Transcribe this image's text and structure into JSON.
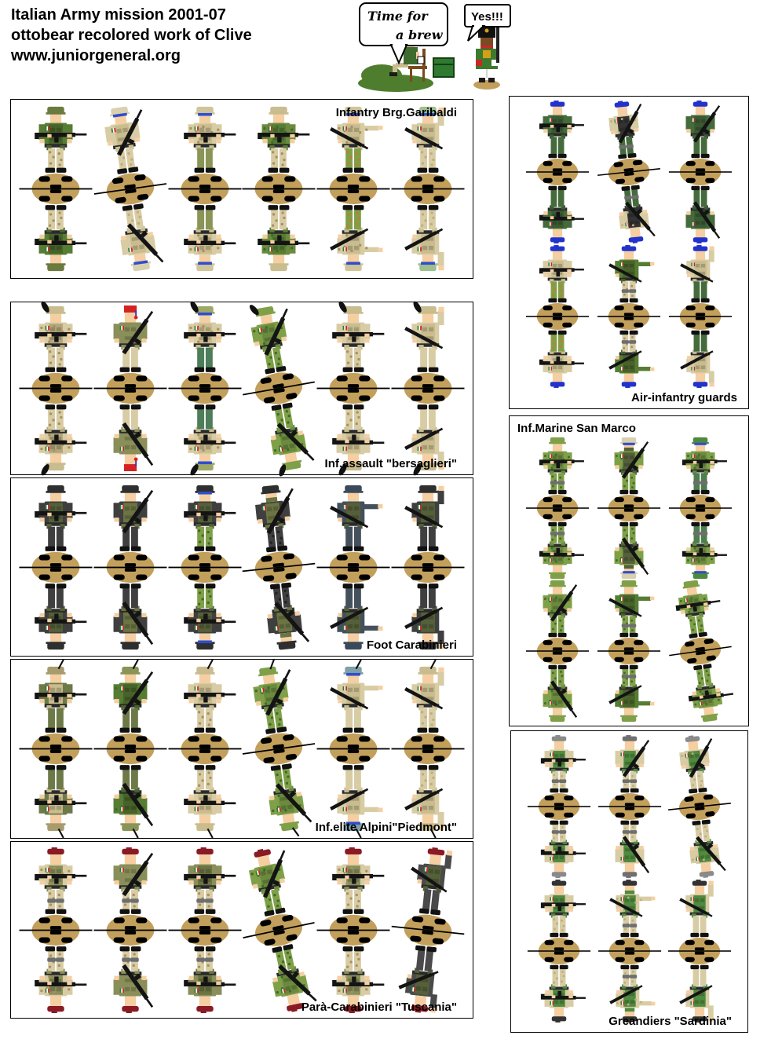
{
  "header": {
    "line1": "Italian Army mission 2001-07",
    "line2": "ottobear recolored work of Clive",
    "line3": "www.juniorgeneral.org"
  },
  "cartoon": {
    "bubble_left_line1": "Time for",
    "bubble_left_line2": "a brew",
    "bubble_right": "Yes!!!"
  },
  "palette": {
    "base_oval": "#C2A05C",
    "skin": "#F5CFA2",
    "rifle": "#141414",
    "flag_green": "#2E7D32",
    "flag_red": "#C62828",
    "goggle_blue": "#2E4ECC"
  },
  "units": [
    {
      "id": "garibaldi",
      "label": "Infantry Brg.Garibaldi",
      "rows": [
        [
          {
            "h": "helmet",
            "hc": "#6B7A3E",
            "coat": "#567D33",
            "vest": "#48632A",
            "pants": "#D8CCA4",
            "cs": "#A8905E",
            "pose": "level"
          },
          {
            "h": "helmet",
            "hc": "#D9D0B0",
            "gog": 1,
            "coat": "#D8CCA4",
            "vest": "#C9BC8E",
            "pants": "#D8CCA4",
            "cs": "#BFAE7E",
            "pose": "up",
            "tilt": -8
          },
          {
            "h": "helmet",
            "hc": "#D0C49A",
            "gog": 1,
            "coat": "#D8CCA4",
            "cc": "#A8905E",
            "vest": "#C9BC8E",
            "pants": "#8A9456",
            "pose": "level"
          },
          {
            "h": "helmet",
            "hc": "#C9BC8E",
            "coat": "#6B8A3E",
            "cc": "#3F6B2A",
            "vest": "#567D33",
            "pants": "#D8CCA4",
            "cs": "#A8905E",
            "pose": "level"
          },
          {
            "h": "helmet",
            "hc": "#D0C49A",
            "gog": 1,
            "coat": "#D8CCA4",
            "cc": "#A8905E",
            "vest": "#C9BC8E",
            "pants": "#7FA048",
            "cs": "#C87830",
            "pose": "point"
          },
          {
            "h": "helmet",
            "hc": "#9FBF8F",
            "gog": 1,
            "coat": "#D8CCA4",
            "vest": "#C9BC8E",
            "pants": "#D8CCA4",
            "cs": "#BFAE7E",
            "pose": "wave"
          }
        ]
      ]
    },
    {
      "id": "bersaglieri",
      "label": "Inf.assault \"bersaglieri\"",
      "rows": [
        [
          {
            "h": "plume",
            "hc": "#C9BC8E",
            "coat": "#D8CCA4",
            "cc": "#A8905E",
            "vest": "#B3A67A",
            "pants": "#D8CCA4",
            "cs": "#A8905E",
            "pose": "level"
          },
          {
            "h": "fez",
            "hc": "#D42222",
            "coat": "#8A8F5A",
            "vest": "#8A8F5A",
            "pants": "#D8CCA4",
            "pose": "up"
          },
          {
            "h": "plume",
            "hc": "#9FA868",
            "gog": 1,
            "coat": "#D8CCA4",
            "cc": "#A8905E",
            "vest": "#C9BC8E",
            "pants": "#4E7D5A",
            "pose": "level"
          },
          {
            "h": "plume",
            "hc": "#7FA048",
            "coat": "#7FA048",
            "cc": "#3F6B2A",
            "vest": "#6B8A3E",
            "pants": "#7FA048",
            "cs": "#3F6B2A",
            "pose": "up",
            "tilt": -10
          },
          {
            "h": "plume",
            "hc": "#C9BC8E",
            "coat": "#D8CCA4",
            "vest": "#C9BC8E",
            "pants": "#D8CCA4",
            "cs": "#A8905E",
            "pose": "level"
          },
          {
            "h": "plume",
            "hc": "#C9BC8E",
            "coat": "#D8CCA4",
            "vest": "#C9BC8E",
            "pants": "#D8CCA4",
            "pose": "wave"
          }
        ]
      ]
    },
    {
      "id": "carabinieri",
      "label": "Foot Carabinieri",
      "rows": [
        [
          {
            "h": "helmet",
            "hc": "#2F2F2F",
            "coat": "#3F3F3F",
            "vest": "#55603A",
            "pants": "#3F3F3F",
            "pose": "level"
          },
          {
            "h": "helmet",
            "hc": "#2F2F2F",
            "coat": "#3F3F3F",
            "vest": "#6B7442",
            "pants": "#3F3F3F",
            "pose": "up"
          },
          {
            "h": "helmet",
            "hc": "#2F2F2F",
            "gog": 1,
            "coat": "#3F3F3F",
            "vest": "#55603A",
            "pants": "#7FA048",
            "cs": "#3F6B2A",
            "pose": "level"
          },
          {
            "h": "helmet",
            "hc": "#2F2F2F",
            "mask": 1,
            "coat": "#3F3F3F",
            "vest": "#6B7442",
            "pants": "#3F3F3F",
            "cs": "#222222",
            "pose": "up",
            "tilt": -6
          },
          {
            "h": "helmet",
            "hc": "#3A4A5A",
            "coat": "#44505C",
            "vest": "#55603A",
            "pants": "#44505C",
            "pose": "point"
          },
          {
            "h": "helmet",
            "hc": "#2F2F2F",
            "coat": "#3F3F3F",
            "vest": "#55603A",
            "pants": "#3F3F3F",
            "pose": "wave"
          }
        ]
      ]
    },
    {
      "id": "alpini",
      "label": "Inf.elite Alpini\"Piedmont\"",
      "rows": [
        [
          {
            "h": "feather",
            "hc": "#A89B6E",
            "coat": "#6D7A48",
            "vest": "#C9BC8E",
            "pants": "#6D7A48",
            "pose": "level"
          },
          {
            "h": "feather",
            "hc": "#8A9456",
            "coat": "#567D33",
            "cc": "#3F6B2A",
            "vest": "#48632A",
            "pants": "#6D7A48",
            "pose": "up"
          },
          {
            "h": "feather",
            "hc": "#C9BC8E",
            "coat": "#D8CCA4",
            "vest": "#C9BC8E",
            "pants": "#D8CCA4",
            "cs": "#A8905E",
            "pose": "level"
          },
          {
            "h": "feather",
            "hc": "#7FA048",
            "coat": "#7FA048",
            "cc": "#3F6B2A",
            "vest": "#6B8A3E",
            "pants": "#7FA048",
            "cs": "#3F6B2A",
            "pose": "up",
            "tilt": -8
          },
          {
            "h": "feather",
            "hc": "#7FA0A8",
            "gog": 1,
            "coat": "#D8CCA4",
            "vest": "#C9BC8E",
            "pants": "#D8CCA4",
            "pose": "point"
          },
          {
            "h": "feather",
            "hc": "#C9BC8E",
            "coat": "#D8CCA4",
            "vest": "#C9BC8E",
            "pants": "#D8CCA4",
            "cs": "#BFAE7E",
            "pose": "wave"
          }
        ]
      ]
    },
    {
      "id": "tuscania",
      "label": "Parà-Carabinieri \"Tuscania\"",
      "rows": [
        [
          {
            "h": "beret",
            "hc": "#8A1A24",
            "coat": "#D8CCA4",
            "cc": "#A8905E",
            "vest": "#8A8F5A",
            "pants": "#D8CCA4",
            "cs": "#A8905E",
            "pose": "level",
            "kp": 1
          },
          {
            "h": "beret",
            "hc": "#8A1A24",
            "coat": "#8A8F5A",
            "vest": "#8A8F5A",
            "pants": "#D8CCA4",
            "cs": "#A8905E",
            "pose": "up",
            "kp": 1
          },
          {
            "h": "beret",
            "hc": "#8A1A24",
            "coat": "#8A8F5A",
            "vest": "#6B7442",
            "pants": "#D8CCA4",
            "cs": "#A8905E",
            "pose": "level",
            "kp": 1
          },
          {
            "h": "beret",
            "hc": "#8A1A24",
            "coat": "#7FA048",
            "cc": "#3F6B2A",
            "vest": "#6B8A3E",
            "pants": "#7FA048",
            "cs": "#3F6B2A",
            "pose": "up",
            "tilt": -12
          },
          {
            "h": "beret",
            "hc": "#8A1A24",
            "coat": "#D8CCA4",
            "cc": "#A8905E",
            "vest": "#8A8F5A",
            "pants": "#D8CCA4",
            "cs": "#A8905E",
            "pose": "level"
          },
          {
            "h": "beret",
            "hc": "#8A1A24",
            "coat": "#4A4A4A",
            "vest": "#55603A",
            "pants": "#4A4A4A",
            "pose": "wave",
            "tilt": 6
          }
        ]
      ]
    },
    {
      "id": "airguards",
      "label": "Air-infantry guards",
      "rows": [
        [
          {
            "h": "beret",
            "hc": "#2233CC",
            "coat": "#456B3C",
            "vest": "#3A5A32",
            "pants": "#456B3C",
            "pose": "level"
          },
          {
            "h": "beret",
            "hc": "#2233CC",
            "coat": "#D8CCA4",
            "cc": "#BFAE7E",
            "vest": "#333333",
            "pants": "#456B3C",
            "pose": "up",
            "tilt": -6,
            "kp": 1
          },
          {
            "h": "beret",
            "hc": "#2233CC",
            "coat": "#456B3C",
            "vest": "#3A5A32",
            "pants": "#456B3C",
            "pose": "up"
          }
        ],
        [
          {
            "h": "beret",
            "hc": "#2233CC",
            "coat": "#D8CCA4",
            "vest": "#C9BC8E",
            "pants": "#7FA048",
            "cs": "#C87830",
            "pose": "level"
          },
          {
            "h": "beret",
            "hc": "#2233CC",
            "coat": "#567D33",
            "vest": "#48632A",
            "pants": "#D8CCA4",
            "cs": "#A8905E",
            "pose": "point",
            "kp": 1
          },
          {
            "h": "beret",
            "hc": "#2233CC",
            "coat": "#D8CCA4",
            "vest": "#C9BC8E",
            "pants": "#456B3C",
            "pose": "wave"
          }
        ]
      ]
    },
    {
      "id": "sanmarco",
      "label": "Inf.Marine San Marco",
      "rows": [
        [
          {
            "h": "helmet",
            "hc": "#7FA048",
            "coat": "#7FA048",
            "cc": "#3F6B2A",
            "vest": "#6B8A3E",
            "pants": "#7FA048",
            "cs": "#3F6B2A",
            "pose": "level",
            "kp": 1
          },
          {
            "h": "helmet",
            "hc": "#D9D0B0",
            "gog": 1,
            "mask": 1,
            "coat": "#7FA048",
            "cc": "#3F6B2A",
            "vest": "#55603A",
            "pants": "#7FA048",
            "cs": "#3F6B2A",
            "pose": "up"
          },
          {
            "h": "helmet",
            "hc": "#4E8A3E",
            "gog": 1,
            "coat": "#7FA048",
            "cc": "#3F6B2A",
            "vest": "#6B8A3E",
            "pants": "#4E7D4E",
            "pose": "level",
            "kp": 1
          }
        ],
        [
          {
            "h": "helmet",
            "hc": "#7FA048",
            "coat": "#7FA048",
            "cc": "#3F6B2A",
            "vest": "#6B8A3E",
            "pants": "#7FA048",
            "cs": "#3F6B2A",
            "pose": "up"
          },
          {
            "h": "helmet",
            "hc": "#7FA048",
            "coat": "#567D33",
            "vest": "#48632A",
            "pants": "#7FA048",
            "cs": "#3F6B2A",
            "pose": "point",
            "kp": 1
          },
          {
            "h": "helmet",
            "hc": "#7FA048",
            "coat": "#7FA048",
            "cc": "#3F6B2A",
            "vest": "#6B8A3E",
            "pants": "#7FA048",
            "cs": "#3F6B2A",
            "pose": "level",
            "tilt": -8
          }
        ]
      ]
    },
    {
      "id": "sardinia",
      "label": "Greandiers \"Sardinia\"",
      "rows": [
        [
          {
            "h": "beret",
            "hc": "#8A8A8A",
            "coat": "#D8CCA4",
            "vest": "#4F8A3F",
            "pants": "#D8CCA4",
            "cs": "#BFAE7E",
            "pose": "level",
            "kp": 1
          },
          {
            "h": "beret",
            "hc": "#707070",
            "coat": "#D8CCA4",
            "vest": "#4F8A3F",
            "pants": "#D8CCA4",
            "cs": "#BFAE7E",
            "pose": "up",
            "kp": 1
          },
          {
            "h": "beret",
            "hc": "#8A8A8A",
            "coat": "#D8CCA4",
            "cc": "#BFAE7E",
            "vest": "#4F8A3F",
            "pants": "#D8CCA4",
            "cs": "#BFAE7E",
            "pose": "up",
            "tilt": -6
          }
        ],
        [
          {
            "h": "beret",
            "hc": "#333333",
            "coat": "#D8CCA4",
            "vest": "#4F8A3F",
            "pants": "#D8CCA4",
            "cs": "#BFAE7E",
            "pose": "level"
          },
          {
            "h": "beret",
            "hc": "#333333",
            "mask": 1,
            "coat": "#D8CCA4",
            "cc": "#BFAE7E",
            "vest": "#4F8A3F",
            "pants": "#D8CCA4",
            "cs": "#BFAE7E",
            "pose": "point",
            "kp": 1
          },
          {
            "h": "beret",
            "hc": "#333333",
            "coat": "#D8CCA4",
            "vest": "#4F8A3F",
            "pants": "#D8CCA4",
            "pose": "wave"
          }
        ]
      ]
    }
  ]
}
